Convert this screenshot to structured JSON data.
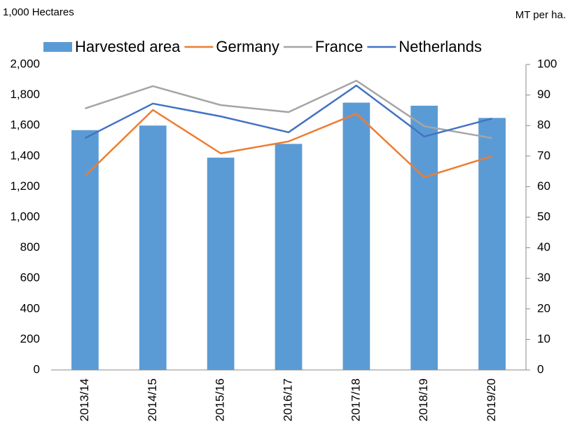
{
  "chart_data": {
    "type": "bar",
    "y_label": "1,000 Hectares",
    "y2_label": "MT per ha.",
    "categories": [
      "2013/14",
      "2014/15",
      "2015/16",
      "2016/17",
      "2017/18",
      "2018/19",
      "2019/20"
    ],
    "series": [
      {
        "name": "Harvested area",
        "type": "bar",
        "color": "#5b9bd5",
        "values": [
          1570,
          1600,
          1390,
          1480,
          1750,
          1730,
          1650
        ]
      },
      {
        "name": "Germany",
        "type": "line",
        "axis": "y2",
        "color": "#ed7d31",
        "values": [
          63.5,
          85.1,
          70.9,
          74.8,
          83.9,
          63.1,
          70
        ]
      },
      {
        "name": "France",
        "type": "line",
        "axis": "y2",
        "color": "#a5a5a5",
        "values": [
          85.6,
          92.9,
          86.7,
          84.4,
          94.7,
          79.8,
          75.9
        ]
      },
      {
        "name": "Netherlands",
        "type": "line",
        "axis": "y2",
        "color": "#4472c4",
        "values": [
          75.9,
          87.2,
          83,
          77.8,
          93.1,
          76.4,
          82.3
        ]
      }
    ],
    "ylim": [
      0,
      2000
    ],
    "yticks": [
      0,
      200,
      400,
      600,
      800,
      {
        "value": 1000,
        "label": "1,000"
      },
      {
        "value": 1200,
        "label": "1,200"
      },
      {
        "value": 1400,
        "label": "1,400"
      },
      {
        "value": 1600,
        "label": "1,600"
      },
      {
        "value": 1800,
        "label": "1,800"
      },
      {
        "value": 2000,
        "label": "2,000"
      }
    ],
    "y2lim": [
      0,
      100
    ],
    "y2ticks": [
      0,
      10,
      20,
      30,
      40,
      50,
      60,
      70,
      80,
      90,
      100
    ],
    "grid": false,
    "legend": "top"
  }
}
